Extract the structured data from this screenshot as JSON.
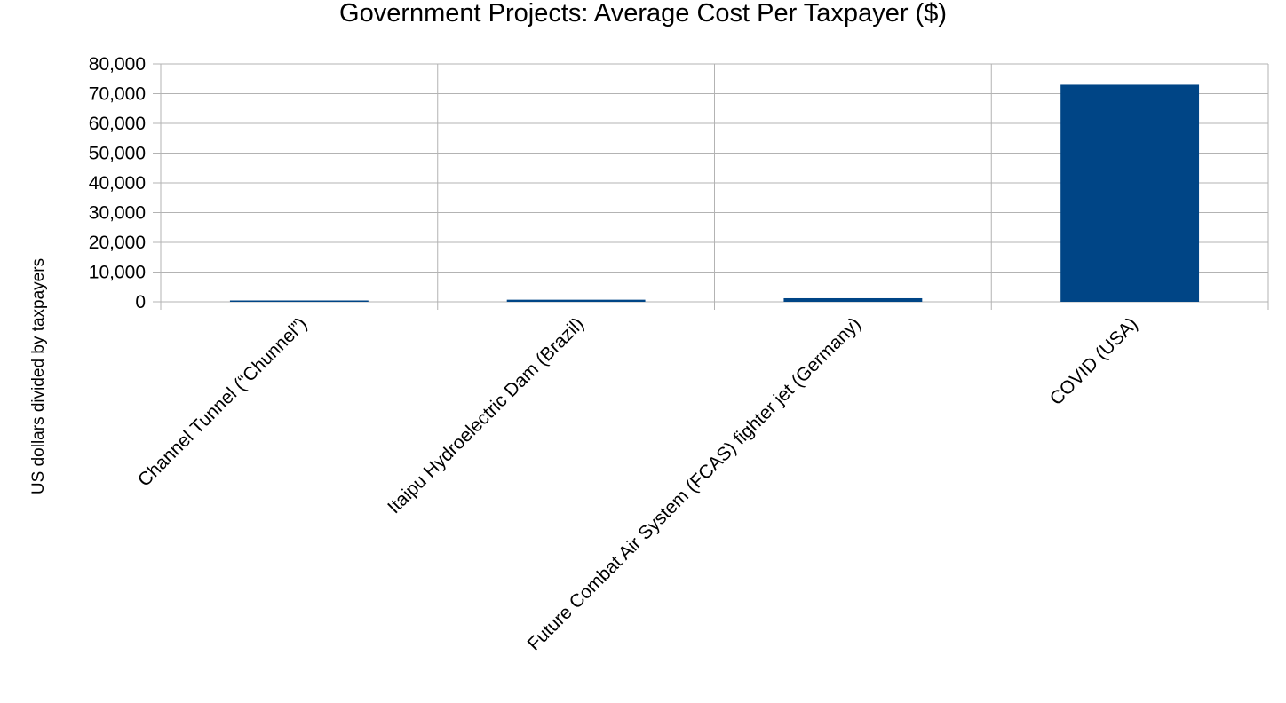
{
  "chart_data": {
    "type": "bar",
    "title": "Government Projects: Average Cost Per Taxpayer ($)",
    "xlabel": "",
    "ylabel": "US dollars divided by taxpayers",
    "categories": [
      "Channel Tunnel (“Chunnel”)",
      "Itaipu Hydroelectric Dam (Brazil)",
      "Future Combat Air System (FCAS) fighter jet (Germany)",
      "COVID (USA)"
    ],
    "values": [
      400,
      700,
      1200,
      73000
    ],
    "ylim": [
      0,
      80000
    ],
    "yticks": [
      "0",
      "10,000",
      "20,000",
      "30,000",
      "40,000",
      "50,000",
      "60,000",
      "70,000",
      "80,000"
    ],
    "grid": true,
    "legend": "none",
    "bar_color": "#004586",
    "grid_color": "#b3b3b3"
  }
}
